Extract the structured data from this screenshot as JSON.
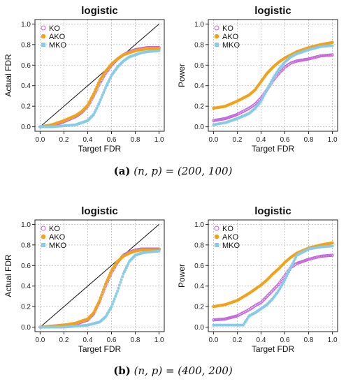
{
  "legend_labels": [
    "KO",
    "AKO",
    "MKO"
  ],
  "colors": {
    "KO": "#c261d8",
    "AKO": "#f2a218",
    "MKO": "#87cbe8",
    "diagonal": "#111111",
    "grid": "#b5b5b5"
  },
  "captions": [
    {
      "tag": "(a)",
      "text": "(n, p) = (200, 100)"
    },
    {
      "tag": "(b)",
      "text": "(n, p) = (400, 200)"
    }
  ],
  "chart_data": [
    {
      "type": "scatter",
      "title": "logistic",
      "xlabel": "Target FDR",
      "ylabel": "Actual FDR",
      "xlim": [
        0,
        1
      ],
      "ylim": [
        0,
        1
      ],
      "xticks": [
        "0.0",
        "0.2",
        "0.4",
        "0.6",
        "0.8",
        "1.0"
      ],
      "yticks": [
        "0.0",
        "0.2",
        "0.4",
        "0.6",
        "0.8",
        "1.0"
      ],
      "grid": true,
      "legend": "top-left",
      "diagonal": true,
      "series": [
        {
          "name": "KO",
          "x": [
            0,
            0.1,
            0.2,
            0.3,
            0.35,
            0.4,
            0.45,
            0.5,
            0.55,
            0.6,
            0.65,
            0.7,
            0.75,
            0.8,
            0.85,
            0.9,
            1.0
          ],
          "y": [
            0,
            0.01,
            0.05,
            0.1,
            0.14,
            0.2,
            0.3,
            0.42,
            0.52,
            0.6,
            0.66,
            0.7,
            0.73,
            0.75,
            0.76,
            0.77,
            0.77
          ]
        },
        {
          "name": "AKO",
          "x": [
            0,
            0.1,
            0.2,
            0.3,
            0.35,
            0.4,
            0.45,
            0.5,
            0.55,
            0.6,
            0.65,
            0.7,
            0.75,
            0.8,
            0.85,
            0.9,
            1.0
          ],
          "y": [
            0,
            0.02,
            0.06,
            0.11,
            0.15,
            0.21,
            0.32,
            0.45,
            0.54,
            0.61,
            0.66,
            0.7,
            0.72,
            0.74,
            0.75,
            0.76,
            0.76
          ]
        },
        {
          "name": "MKO",
          "x": [
            0,
            0.1,
            0.2,
            0.3,
            0.4,
            0.45,
            0.5,
            0.55,
            0.6,
            0.65,
            0.7,
            0.75,
            0.8,
            0.85,
            0.9,
            1.0
          ],
          "y": [
            0,
            0,
            0.01,
            0.02,
            0.06,
            0.12,
            0.24,
            0.38,
            0.5,
            0.58,
            0.64,
            0.68,
            0.7,
            0.72,
            0.73,
            0.74
          ]
        }
      ]
    },
    {
      "type": "scatter",
      "title": "logistic",
      "xlabel": "Target FDR",
      "ylabel": "Power",
      "xlim": [
        0,
        1
      ],
      "ylim": [
        0,
        1
      ],
      "xticks": [
        "0.0",
        "0.2",
        "0.4",
        "0.6",
        "0.8",
        "1.0"
      ],
      "yticks": [
        "0.0",
        "0.2",
        "0.4",
        "0.6",
        "0.8",
        "1.0"
      ],
      "grid": true,
      "legend": "top-left",
      "diagonal": false,
      "series": [
        {
          "name": "KO",
          "x": [
            0,
            0.1,
            0.2,
            0.3,
            0.35,
            0.4,
            0.45,
            0.5,
            0.55,
            0.6,
            0.65,
            0.7,
            0.8,
            0.9,
            1.0
          ],
          "y": [
            0.06,
            0.08,
            0.12,
            0.18,
            0.22,
            0.28,
            0.36,
            0.45,
            0.52,
            0.58,
            0.62,
            0.64,
            0.66,
            0.69,
            0.7
          ]
        },
        {
          "name": "AKO",
          "x": [
            0,
            0.1,
            0.2,
            0.3,
            0.35,
            0.4,
            0.45,
            0.5,
            0.55,
            0.6,
            0.65,
            0.7,
            0.8,
            0.9,
            1.0
          ],
          "y": [
            0.18,
            0.2,
            0.25,
            0.31,
            0.36,
            0.44,
            0.52,
            0.58,
            0.63,
            0.67,
            0.7,
            0.73,
            0.77,
            0.8,
            0.82
          ]
        },
        {
          "name": "MKO",
          "x": [
            0,
            0.1,
            0.2,
            0.3,
            0.35,
            0.4,
            0.45,
            0.5,
            0.55,
            0.6,
            0.65,
            0.7,
            0.8,
            0.9,
            1.0
          ],
          "y": [
            0.02,
            0.04,
            0.08,
            0.13,
            0.18,
            0.25,
            0.36,
            0.47,
            0.56,
            0.63,
            0.68,
            0.71,
            0.75,
            0.78,
            0.79
          ]
        }
      ]
    },
    {
      "type": "scatter",
      "title": "logistic",
      "xlabel": "Target FDR",
      "ylabel": "Actual FDR",
      "xlim": [
        0,
        1
      ],
      "ylim": [
        0,
        1
      ],
      "xticks": [
        "0.0",
        "0.2",
        "0.4",
        "0.6",
        "0.8",
        "1.0"
      ],
      "yticks": [
        "0.0",
        "0.2",
        "0.4",
        "0.6",
        "0.8",
        "1.0"
      ],
      "grid": true,
      "legend": "top-left",
      "diagonal": true,
      "series": [
        {
          "name": "KO",
          "x": [
            0,
            0.1,
            0.2,
            0.3,
            0.35,
            0.4,
            0.45,
            0.5,
            0.55,
            0.6,
            0.65,
            0.7,
            0.75,
            0.8,
            0.85,
            0.9,
            1.0
          ],
          "y": [
            0,
            0.01,
            0.02,
            0.03,
            0.05,
            0.07,
            0.13,
            0.25,
            0.4,
            0.53,
            0.63,
            0.7,
            0.73,
            0.75,
            0.76,
            0.76,
            0.76
          ]
        },
        {
          "name": "AKO",
          "x": [
            0,
            0.1,
            0.2,
            0.3,
            0.35,
            0.4,
            0.45,
            0.5,
            0.55,
            0.6,
            0.65,
            0.7,
            0.75,
            0.8,
            0.85,
            0.9,
            1.0
          ],
          "y": [
            0,
            0.01,
            0.02,
            0.04,
            0.06,
            0.08,
            0.14,
            0.26,
            0.42,
            0.55,
            0.64,
            0.69,
            0.72,
            0.74,
            0.75,
            0.75,
            0.75
          ]
        },
        {
          "name": "MKO",
          "x": [
            0,
            0.1,
            0.2,
            0.3,
            0.4,
            0.5,
            0.55,
            0.6,
            0.65,
            0.7,
            0.75,
            0.8,
            0.85,
            0.9,
            1.0
          ],
          "y": [
            0,
            0,
            0,
            0.01,
            0.02,
            0.05,
            0.1,
            0.2,
            0.35,
            0.52,
            0.64,
            0.7,
            0.72,
            0.73,
            0.74
          ]
        }
      ]
    },
    {
      "type": "scatter",
      "title": "logistic",
      "xlabel": "Target FDR",
      "ylabel": "Power",
      "xlim": [
        0,
        1
      ],
      "ylim": [
        0,
        1
      ],
      "xticks": [
        "0.0",
        "0.2",
        "0.4",
        "0.6",
        "0.8",
        "1.0"
      ],
      "yticks": [
        "0.0",
        "0.2",
        "0.4",
        "0.6",
        "0.8",
        "1.0"
      ],
      "grid": true,
      "legend": "top-left",
      "diagonal": false,
      "series": [
        {
          "name": "KO",
          "x": [
            0,
            0.1,
            0.2,
            0.3,
            0.35,
            0.4,
            0.45,
            0.5,
            0.55,
            0.6,
            0.65,
            0.7,
            0.8,
            0.9,
            1.0
          ],
          "y": [
            0.07,
            0.08,
            0.11,
            0.17,
            0.21,
            0.24,
            0.3,
            0.36,
            0.42,
            0.5,
            0.58,
            0.62,
            0.66,
            0.69,
            0.7
          ]
        },
        {
          "name": "AKO",
          "x": [
            0,
            0.1,
            0.2,
            0.3,
            0.35,
            0.4,
            0.45,
            0.5,
            0.55,
            0.6,
            0.65,
            0.7,
            0.8,
            0.9,
            1.0
          ],
          "y": [
            0.2,
            0.22,
            0.26,
            0.33,
            0.37,
            0.41,
            0.46,
            0.52,
            0.57,
            0.63,
            0.68,
            0.72,
            0.77,
            0.8,
            0.82
          ]
        },
        {
          "name": "MKO",
          "x": [
            0,
            0.1,
            0.2,
            0.25,
            0.3,
            0.35,
            0.4,
            0.45,
            0.5,
            0.55,
            0.6,
            0.65,
            0.7,
            0.8,
            0.9,
            1.0
          ],
          "y": [
            0.02,
            0.02,
            0.02,
            0.02,
            0.11,
            0.14,
            0.18,
            0.22,
            0.28,
            0.36,
            0.46,
            0.58,
            0.7,
            0.76,
            0.78,
            0.79
          ]
        }
      ]
    }
  ]
}
